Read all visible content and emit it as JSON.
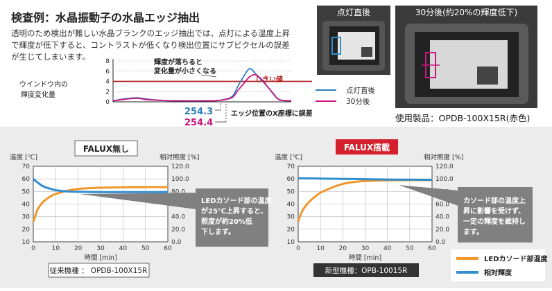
{
  "header": {
    "title": "検査例：水晶振動子の水晶エッジ抽出",
    "description_lines": [
      "透明のため検出が難しい水晶ブランクのエッジ抽出では、点灯による温度上昇",
      "で輝度が低下すると、コントラストが低くなり検出位置にサブピクセルの誤差",
      "が生じてしまいます。"
    ]
  },
  "photos": {
    "left_label": "点灯直後",
    "right_label": "30分後(約20%の輝度低下)"
  },
  "product_label": "使用製品：OPDB-100X15R(赤色)",
  "chart_data": [
    {
      "type": "line",
      "id": "edge-profile",
      "ylabel_lines": [
        "ウインドウ内の",
        "輝度変化量"
      ],
      "ylim": [
        0,
        8
      ],
      "yticks": [
        0,
        2,
        4,
        6,
        8
      ],
      "threshold": {
        "value": 4,
        "label": "しきい値",
        "color": "#b22222"
      },
      "series": [
        {
          "name": "点灯直後",
          "color": "#2e7fc0",
          "x": [
            0,
            2,
            4,
            6,
            8,
            10,
            12,
            14,
            16,
            18,
            20,
            21,
            22,
            23,
            24,
            25,
            26,
            27,
            28,
            30
          ],
          "values": [
            0.2,
            0.6,
            0.8,
            0.5,
            0.3,
            0.2,
            0.2,
            0.2,
            0.2,
            0.3,
            1.0,
            3.0,
            5.0,
            6.5,
            5.5,
            4.2,
            3.0,
            1.5,
            0.4,
            0.2
          ]
        },
        {
          "name": "30分後",
          "color": "#c8177f",
          "x": [
            0,
            2,
            4,
            6,
            8,
            10,
            12,
            14,
            16,
            18,
            20,
            21,
            22,
            23,
            24,
            25,
            26,
            27,
            28,
            30
          ],
          "values": [
            0.2,
            0.5,
            0.7,
            0.4,
            0.3,
            0.2,
            0.2,
            0.2,
            0.2,
            0.3,
            0.8,
            2.2,
            3.6,
            4.9,
            5.3,
            4.4,
            3.0,
            1.6,
            0.4,
            0.2
          ]
        }
      ],
      "annotations": {
        "note_lines": [
          "輝度が落ちると",
          "変化量が小さくなる"
        ],
        "val1": "254.3",
        "val2": "254.4",
        "error_note": "エッジ位置のX座標に誤差が生じる"
      }
    },
    {
      "type": "line",
      "id": "without-falux",
      "title": "FALUX無し",
      "xlabel": "時間 [min]",
      "ylabel_left": "温度 [℃]",
      "ylabel_right": "相対照度 [%]",
      "xlim": [
        0,
        60
      ],
      "xticks": [
        0,
        10,
        20,
        30,
        40,
        50,
        60
      ],
      "ylim_left": [
        10,
        70
      ],
      "yticks_left": [
        10,
        20,
        30,
        40,
        50,
        60,
        70
      ],
      "ylim_right": [
        0,
        120
      ],
      "yticks_right": [
        "0.0",
        "20.0",
        "40.0",
        "60.0",
        "80.0",
        "100.0",
        "120.0"
      ],
      "series": [
        {
          "name": "LEDカソード部温度",
          "axis": "left",
          "color": "#f0962a",
          "x": [
            0,
            1,
            2,
            4,
            6,
            8,
            10,
            15,
            20,
            30,
            40,
            50,
            60
          ],
          "values": [
            26,
            31,
            36,
            41,
            44,
            46.5,
            48,
            50.5,
            52,
            53,
            53.3,
            53.5,
            53.5
          ]
        },
        {
          "name": "相対輝度",
          "axis": "right",
          "color": "#2e8ed0",
          "x": [
            0,
            2,
            4,
            6,
            8,
            10,
            15,
            20,
            30,
            40,
            50,
            60
          ],
          "values": [
            100,
            94,
            89,
            86,
            84,
            82,
            80,
            79.5,
            79,
            79,
            79,
            79
          ]
        }
      ],
      "callout_lines": [
        "LEDカソード部の温度",
        "が25℃上昇すると、",
        "照度が約20%低",
        "下します。"
      ],
      "model_label": "従来機種 ： OPDB-100X15R"
    },
    {
      "type": "line",
      "id": "with-falux",
      "title": "FALUX搭載",
      "xlabel": "時間 [min]",
      "ylabel_left": "温度 [℃]",
      "ylabel_right": "相対照度 [%]",
      "xlim": [
        0,
        60
      ],
      "xticks": [
        0,
        10,
        20,
        30,
        40,
        50,
        60
      ],
      "ylim_left": [
        10,
        70
      ],
      "yticks_left": [
        10,
        20,
        30,
        40,
        50,
        60,
        70
      ],
      "ylim_right": [
        0,
        120
      ],
      "yticks_right": [
        "0.0",
        "20.0",
        "40.0",
        "60.0",
        "80.0",
        "100.0",
        "120.0"
      ],
      "series": [
        {
          "name": "LEDカソード部温度",
          "axis": "left",
          "color": "#f0962a",
          "x": [
            0,
            1,
            2,
            4,
            6,
            8,
            10,
            15,
            20,
            25,
            30,
            40,
            50,
            60
          ],
          "values": [
            26,
            31,
            35,
            40,
            43.5,
            46.5,
            49,
            53,
            56,
            57.5,
            58.3,
            58.8,
            59,
            59
          ]
        },
        {
          "name": "相対輝度",
          "axis": "right",
          "color": "#2e8ed0",
          "x": [
            0,
            10,
            20,
            30,
            40,
            50,
            60
          ],
          "values": [
            101,
            100.5,
            100,
            99.5,
            99,
            98.8,
            98.5
          ]
        }
      ],
      "callout_lines": [
        "カソード部の温度上",
        "昇に影響を受けず、",
        "一定の輝度を維持し",
        "ます。"
      ],
      "model_label": "新型機種：OPB-10015R"
    }
  ],
  "legend": {
    "items": [
      {
        "name": "LEDカソード部温度",
        "color": "#f0962a"
      },
      {
        "name": "相対輝度",
        "color": "#2e8ed0"
      }
    ]
  }
}
